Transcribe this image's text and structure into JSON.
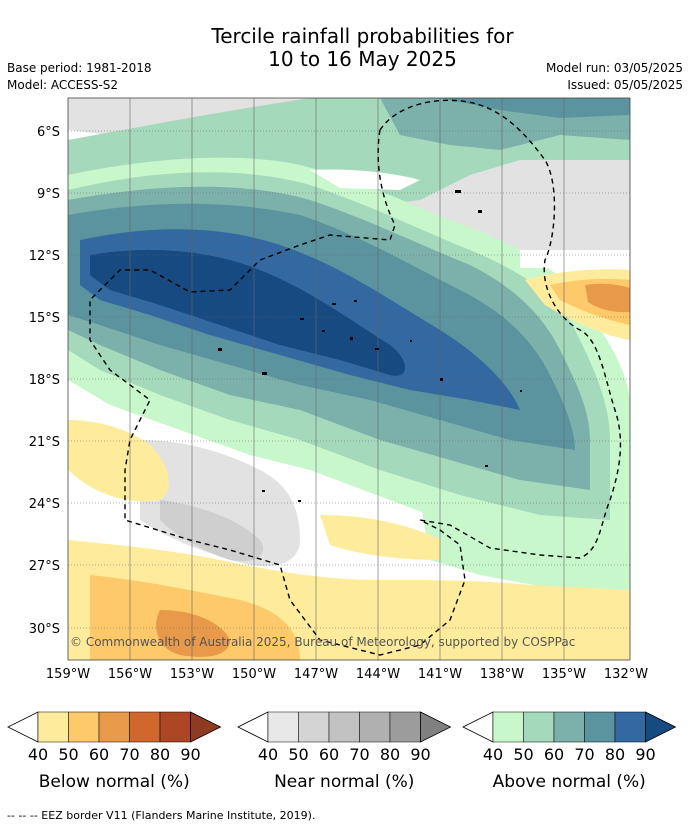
{
  "title_line1": "Tercile rainfall probabilities for",
  "title_line2": "10 to 16 May 2025",
  "base_period": "Base period: 1981-2018",
  "model": "Model: ACCESS-S2",
  "model_run": "Model run: 03/05/2025",
  "issued": "Issued: 05/05/2025",
  "copyright": "© Commonwealth of Australia 2025, Bureau of Meteorology, supported by COSPPac",
  "latitudes": [
    "6°S",
    "9°S",
    "12°S",
    "15°S",
    "18°S",
    "21°S",
    "24°S",
    "27°S",
    "30°S"
  ],
  "longitudes": [
    "159°W",
    "156°W",
    "153°W",
    "150°W",
    "147°W",
    "144°W",
    "141°W",
    "138°W",
    "135°W",
    "132°W"
  ],
  "colorbars": [
    {
      "title": "Below normal (%)",
      "ticks": [
        "40",
        "50",
        "60",
        "70",
        "80",
        "90"
      ],
      "colors": [
        "#ffffff",
        "#feec9c",
        "#fdc96a",
        "#e8994a",
        "#d0682e",
        "#ac4626",
        "#8f3a22"
      ]
    },
    {
      "title": "Near normal (%)",
      "ticks": [
        "40",
        "50",
        "60",
        "70",
        "80",
        "90"
      ],
      "colors": [
        "#ffffff",
        "#e8e8e8",
        "#d4d4d4",
        "#c2c2c2",
        "#b0b0b0",
        "#9c9c9c",
        "#808080"
      ]
    },
    {
      "title": "Above normal (%)",
      "ticks": [
        "40",
        "50",
        "60",
        "70",
        "80",
        "90"
      ],
      "colors": [
        "#ffffff",
        "#c9f7cc",
        "#a5d9bb",
        "#7cb0ab",
        "#5b949f",
        "#3368a0",
        "#174a80"
      ]
    }
  ],
  "eez_note": "-- -- -- EEZ border V11 (Flanders Marine Institute, 2019)."
}
